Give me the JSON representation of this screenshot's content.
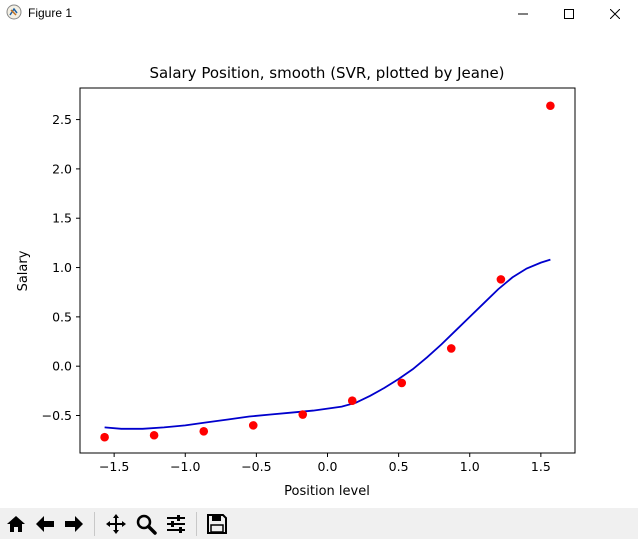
{
  "window": {
    "title": "Figure 1",
    "icons": [
      "app-icon",
      "minimize-icon",
      "maximize-icon",
      "close-icon"
    ]
  },
  "toolbar": {
    "icons": [
      "home-icon",
      "back-arrow-icon",
      "forward-arrow-icon",
      "pan-icon",
      "zoom-icon",
      "configure-subplots-icon",
      "save-icon"
    ]
  },
  "colors": {
    "points": "#ff0000",
    "curve": "#0000cd",
    "axes": "#000000",
    "toolbar_bg": "#f0f0f0"
  },
  "chart_data": {
    "type": "scatter",
    "title": "Salary Position, smooth (SVR, plotted by Jeane)",
    "xlabel": "Position level",
    "ylabel": "Salary",
    "xlim": [
      -1.74,
      1.74
    ],
    "ylim": [
      -0.88,
      2.82
    ],
    "xticks": [
      -1.5,
      -1.0,
      -0.5,
      0.0,
      0.5,
      1.0,
      1.5
    ],
    "xtick_labels": [
      "−1.5",
      "−1.0",
      "−0.5",
      "0.0",
      "0.5",
      "1.0",
      "1.5"
    ],
    "yticks": [
      -0.5,
      0.0,
      0.5,
      1.0,
      1.5,
      2.0,
      2.5
    ],
    "ytick_labels": [
      "−0.5",
      "0.0",
      "0.5",
      "1.0",
      "1.5",
      "2.0",
      "2.5"
    ],
    "grid": false,
    "series": [
      {
        "kind": "scatter",
        "color": "#ff0000",
        "x": [
          -1.567,
          -1.219,
          -0.87,
          -0.522,
          -0.174,
          0.174,
          0.522,
          0.87,
          1.219,
          1.567
        ],
        "y": [
          -0.72,
          -0.7,
          -0.66,
          -0.6,
          -0.49,
          -0.35,
          -0.17,
          0.18,
          0.88,
          2.64
        ]
      },
      {
        "kind": "line",
        "color": "#0000cd",
        "x": [
          -1.567,
          -1.45,
          -1.3,
          -1.15,
          -1.0,
          -0.85,
          -0.7,
          -0.55,
          -0.4,
          -0.25,
          -0.1,
          0.0,
          0.1,
          0.2,
          0.3,
          0.4,
          0.5,
          0.6,
          0.7,
          0.8,
          0.9,
          1.0,
          1.1,
          1.2,
          1.3,
          1.4,
          1.5,
          1.567
        ],
        "y": [
          -0.62,
          -0.635,
          -0.635,
          -0.62,
          -0.6,
          -0.57,
          -0.54,
          -0.51,
          -0.49,
          -0.47,
          -0.45,
          -0.43,
          -0.41,
          -0.37,
          -0.3,
          -0.22,
          -0.13,
          -0.03,
          0.09,
          0.22,
          0.36,
          0.5,
          0.64,
          0.78,
          0.9,
          0.99,
          1.05,
          1.08
        ]
      }
    ]
  }
}
